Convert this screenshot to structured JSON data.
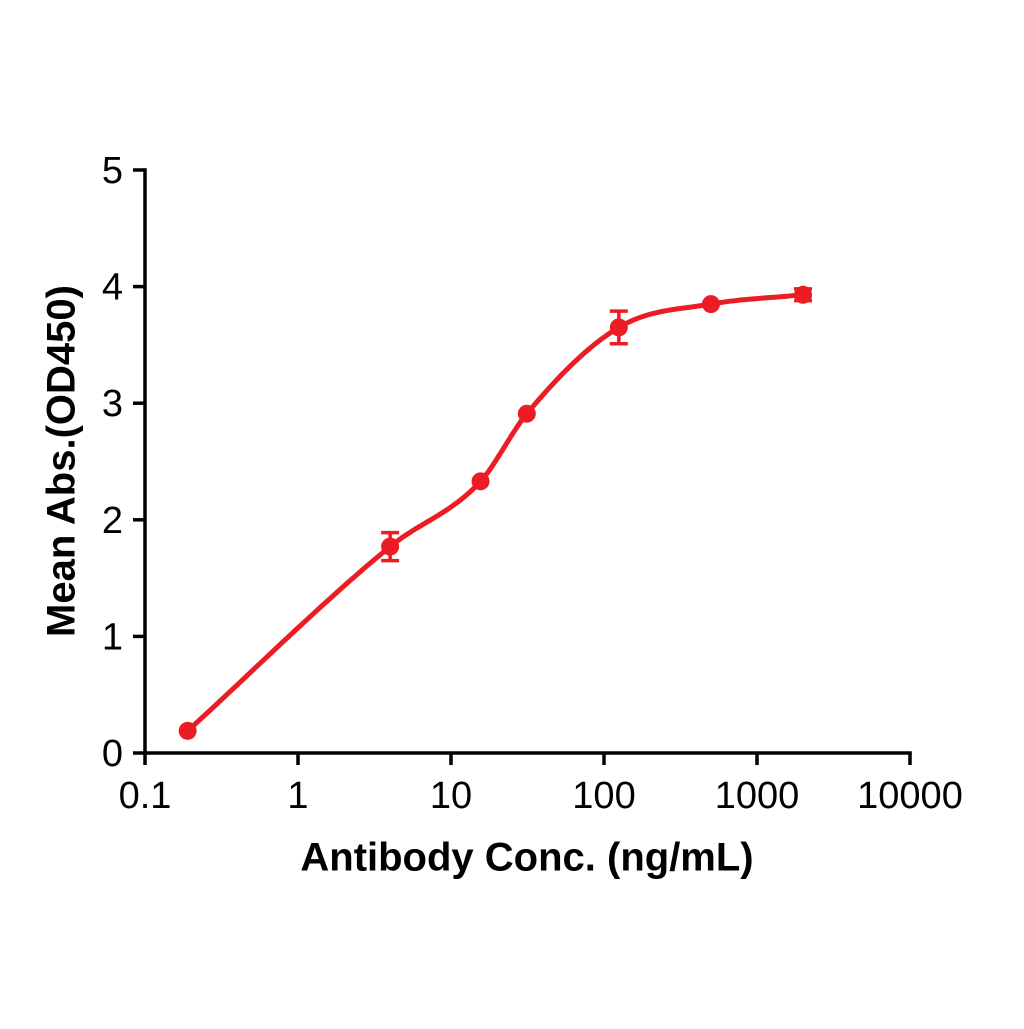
{
  "chart_data": {
    "type": "scatter",
    "title": "",
    "xlabel": "Antibody Conc. (ng/mL)",
    "ylabel": "Mean Abs.(OD450)",
    "x_scale": "log",
    "xlim": [
      0.1,
      10000
    ],
    "ylim": [
      0,
      5
    ],
    "x_ticks": [
      0.1,
      1,
      10,
      100,
      1000,
      10000
    ],
    "x_tick_labels": [
      "0.1",
      "1",
      "10",
      "100",
      "1000",
      "10000"
    ],
    "y_ticks": [
      0,
      1,
      2,
      3,
      4,
      5
    ],
    "y_tick_labels": [
      "0",
      "1",
      "2",
      "3",
      "4",
      "5"
    ],
    "grid": false,
    "legend": false,
    "series": [
      {
        "name": "Mean Abs.(OD450)",
        "color": "#ec1c24",
        "marker": "circle",
        "fit": "smooth-sigmoid",
        "x": [
          0.19,
          4,
          15.6,
          31.3,
          125,
          500,
          2000
        ],
        "y": [
          0.19,
          1.77,
          2.33,
          2.91,
          3.65,
          3.85,
          3.93
        ],
        "y_err": [
          0,
          0.12,
          0,
          0,
          0.14,
          0,
          0.05
        ]
      }
    ],
    "style": {
      "axis_color": "#000000",
      "curve_color": "#ec1c24",
      "point_color": "#ec1c24"
    }
  }
}
